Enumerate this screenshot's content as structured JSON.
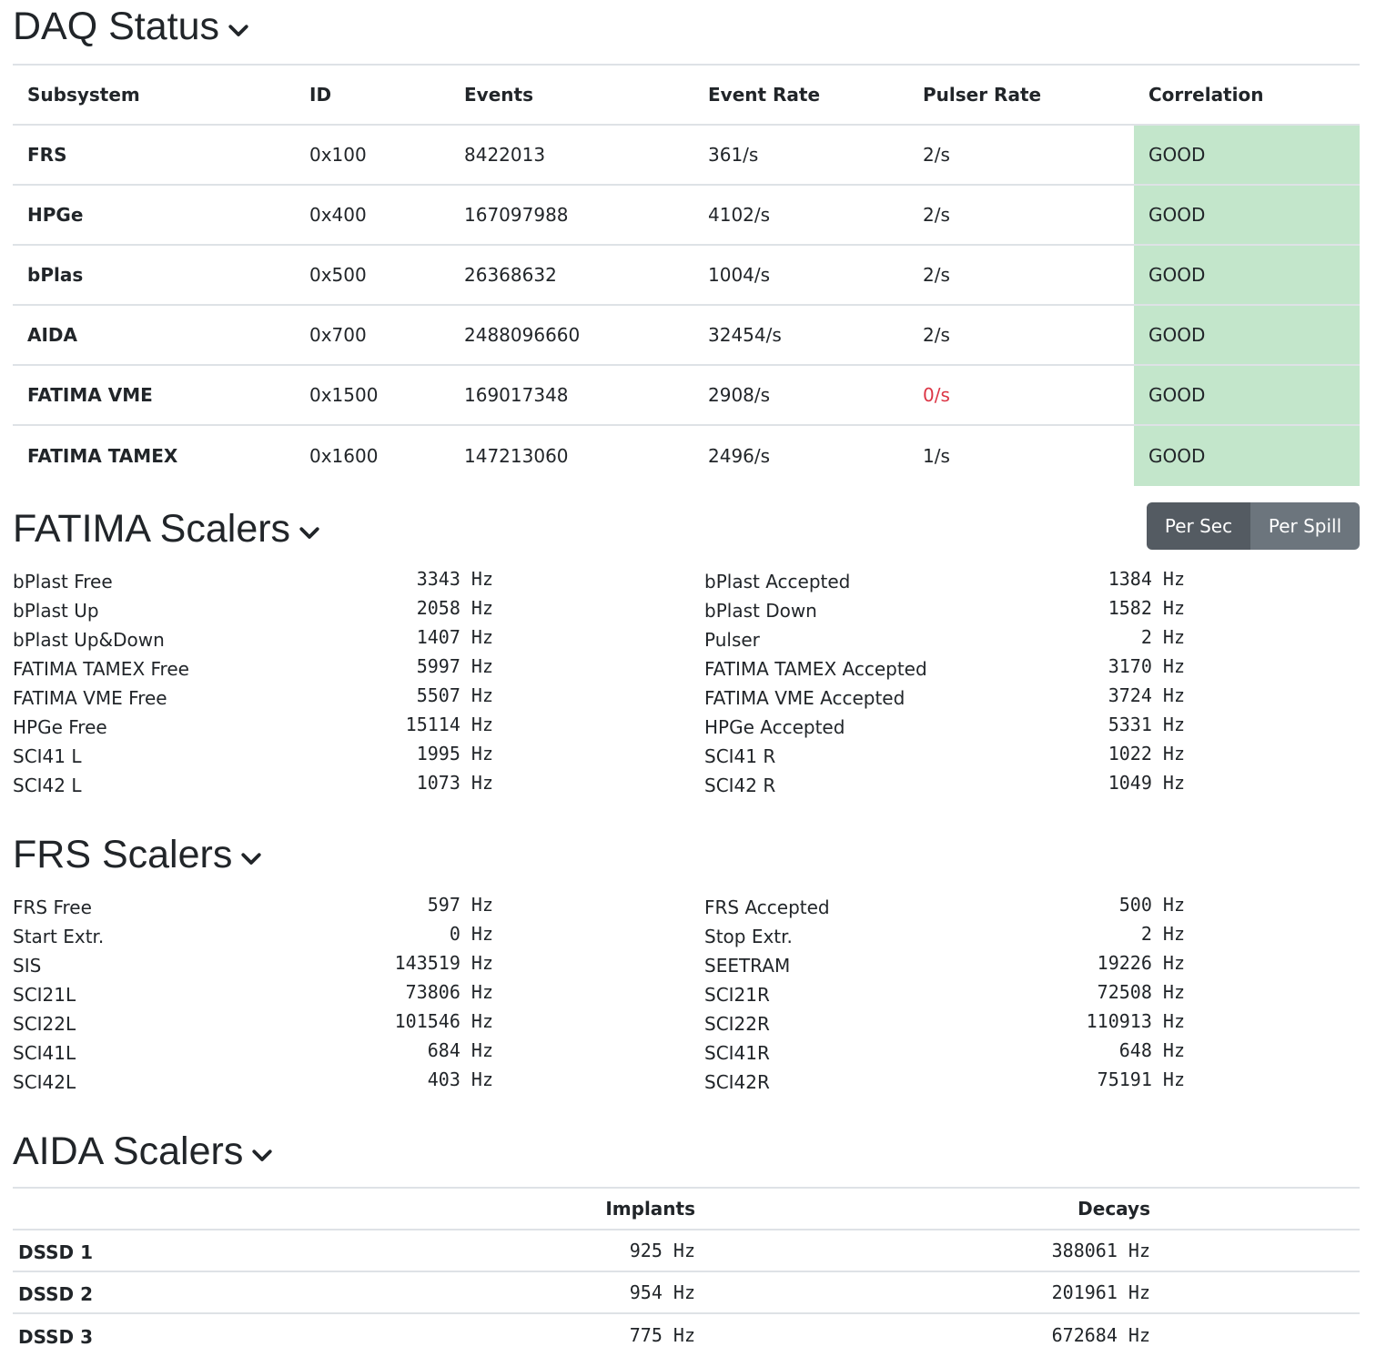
{
  "daq": {
    "title": "DAQ Status",
    "headers": [
      "Subsystem",
      "ID",
      "Events",
      "Event Rate",
      "Pulser Rate",
      "Correlation"
    ],
    "rows": [
      {
        "subsystem": "FRS",
        "id": "0x100",
        "events": "8422013",
        "event_rate": "361/s",
        "pulser_rate": "2/s",
        "correlation": "GOOD"
      },
      {
        "subsystem": "HPGe",
        "id": "0x400",
        "events": "167097988",
        "event_rate": "4102/s",
        "pulser_rate": "2/s",
        "correlation": "GOOD"
      },
      {
        "subsystem": "bPlas",
        "id": "0x500",
        "events": "26368632",
        "event_rate": "1004/s",
        "pulser_rate": "2/s",
        "correlation": "GOOD"
      },
      {
        "subsystem": "AIDA",
        "id": "0x700",
        "events": "2488096660",
        "event_rate": "32454/s",
        "pulser_rate": "2/s",
        "correlation": "GOOD"
      },
      {
        "subsystem": "FATIMA VME",
        "id": "0x1500",
        "events": "169017348",
        "event_rate": "2908/s",
        "pulser_rate": "0/s",
        "correlation": "GOOD"
      },
      {
        "subsystem": "FATIMA TAMEX",
        "id": "0x1600",
        "events": "147213060",
        "event_rate": "2496/s",
        "pulser_rate": "1/s",
        "correlation": "GOOD"
      }
    ],
    "colors": {
      "good_bg": "#c3e6cb",
      "alert_text": "#dc3545"
    }
  },
  "fatima": {
    "title": "FATIMA Scalers",
    "toggle": {
      "per_sec": "Per Sec",
      "per_spill": "Per Spill"
    },
    "left": [
      {
        "label": "bPlast Free",
        "value": "3343 Hz"
      },
      {
        "label": "bPlast Up",
        "value": "2058 Hz"
      },
      {
        "label": "bPlast Up&Down",
        "value": "1407 Hz"
      },
      {
        "label": "FATIMA TAMEX Free",
        "value": "5997 Hz"
      },
      {
        "label": "FATIMA VME Free",
        "value": "5507 Hz"
      },
      {
        "label": "HPGe Free",
        "value": "15114 Hz"
      },
      {
        "label": "SCI41 L",
        "value": "1995 Hz"
      },
      {
        "label": "SCI42 L",
        "value": "1073 Hz"
      }
    ],
    "right": [
      {
        "label": "bPlast Accepted",
        "value": "1384 Hz"
      },
      {
        "label": "bPlast Down",
        "value": "1582 Hz"
      },
      {
        "label": "Pulser",
        "value": "2 Hz"
      },
      {
        "label": "FATIMA TAMEX Accepted",
        "value": "3170 Hz"
      },
      {
        "label": "FATIMA VME Accepted",
        "value": "3724 Hz"
      },
      {
        "label": "HPGe Accepted",
        "value": "5331 Hz"
      },
      {
        "label": "SCI41 R",
        "value": "1022 Hz"
      },
      {
        "label": "SCI42 R",
        "value": "1049 Hz"
      }
    ]
  },
  "frs": {
    "title": "FRS Scalers",
    "left": [
      {
        "label": "FRS Free",
        "value": "597 Hz"
      },
      {
        "label": "Start Extr.",
        "value": "0 Hz"
      },
      {
        "label": "SIS",
        "value": "143519 Hz"
      },
      {
        "label": "SCI21L",
        "value": "73806 Hz"
      },
      {
        "label": "SCI22L",
        "value": "101546 Hz"
      },
      {
        "label": "SCI41L",
        "value": "684 Hz"
      },
      {
        "label": "SCI42L",
        "value": "403 Hz"
      }
    ],
    "right": [
      {
        "label": "FRS Accepted",
        "value": "500 Hz"
      },
      {
        "label": "Stop Extr.",
        "value": "2 Hz"
      },
      {
        "label": "SEETRAM",
        "value": "19226 Hz"
      },
      {
        "label": "SCI21R",
        "value": "72508 Hz"
      },
      {
        "label": "SCI22R",
        "value": "110913 Hz"
      },
      {
        "label": "SCI41R",
        "value": "648 Hz"
      },
      {
        "label": "SCI42R",
        "value": "75191 Hz"
      }
    ]
  },
  "aida": {
    "title": "AIDA Scalers",
    "headers": {
      "detector": "",
      "implants": "Implants",
      "decays": "Decays"
    },
    "rows": [
      {
        "detector": "DSSD 1",
        "implants": "925 Hz",
        "decays": "388061 Hz"
      },
      {
        "detector": "DSSD 2",
        "implants": "954 Hz",
        "decays": "201961 Hz"
      },
      {
        "detector": "DSSD 3",
        "implants": "775 Hz",
        "decays": "672684 Hz"
      }
    ]
  },
  "icons": {
    "collapse": "chevron-down-icon"
  }
}
